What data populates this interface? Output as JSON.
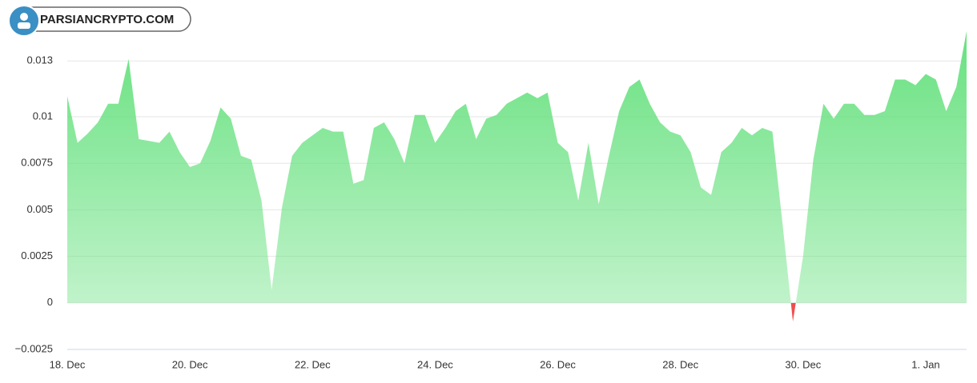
{
  "watermark": "PARSIANCRYPTO.COM",
  "chart_data": {
    "type": "area",
    "color": "#62e07b",
    "negative_color": "#ef4e4e",
    "grid": true,
    "ylim": [
      -0.0025,
      0.0155
    ],
    "yticks": [
      {
        "value": -0.0025,
        "label": "−0.0025"
      },
      0,
      0.0025,
      0.005,
      0.0075,
      0.01,
      0.013
    ],
    "categories": [
      "18. Dec",
      null,
      null,
      null,
      null,
      null,
      null,
      null,
      null,
      null,
      null,
      null,
      "20. Dec",
      null,
      null,
      null,
      null,
      null,
      null,
      null,
      null,
      null,
      null,
      null,
      "22. Dec",
      null,
      null,
      null,
      null,
      null,
      null,
      null,
      null,
      null,
      null,
      null,
      "24. Dec",
      null,
      null,
      null,
      null,
      null,
      null,
      null,
      null,
      null,
      null,
      null,
      "26. Dec",
      null,
      null,
      null,
      null,
      null,
      null,
      null,
      null,
      null,
      null,
      null,
      "28. Dec",
      null,
      null,
      null,
      null,
      null,
      null,
      null,
      null,
      null,
      null,
      null,
      "30. Dec",
      null,
      null,
      null,
      null,
      null,
      null,
      null,
      null,
      null,
      null,
      null,
      "1. Jan",
      null,
      null,
      null,
      null
    ],
    "values": [
      0.0111,
      0.0086,
      0.0091,
      0.0097,
      0.0107,
      0.0107,
      0.0131,
      0.0088,
      0.0087,
      0.0086,
      0.0092,
      0.0081,
      0.0073,
      0.0075,
      0.0087,
      0.0105,
      0.0099,
      0.0079,
      0.0077,
      0.0055,
      0.0007,
      0.0051,
      0.0079,
      0.0086,
      0.009,
      0.0094,
      0.0092,
      0.0092,
      0.0064,
      0.0066,
      0.0094,
      0.0097,
      0.0088,
      0.0075,
      0.0101,
      0.0101,
      0.0086,
      0.0094,
      0.0103,
      0.0107,
      0.0088,
      0.0099,
      0.0101,
      0.0107,
      0.011,
      0.0113,
      0.011,
      0.0113,
      0.0086,
      0.0081,
      0.0055,
      0.0086,
      0.0053,
      0.0079,
      0.0103,
      0.0116,
      0.012,
      0.0107,
      0.0097,
      0.0092,
      0.009,
      0.0081,
      0.0062,
      0.0058,
      0.0081,
      0.0086,
      0.0094,
      0.009,
      0.0094,
      0.0092,
      0.0042,
      -0.001,
      0.0025,
      0.0077,
      0.0107,
      0.0099,
      0.0107,
      0.0107,
      0.0101,
      0.0101,
      0.0103,
      0.012,
      0.012,
      0.0117,
      0.0123,
      0.012,
      0.0103,
      0.0116,
      0.0146
    ]
  }
}
